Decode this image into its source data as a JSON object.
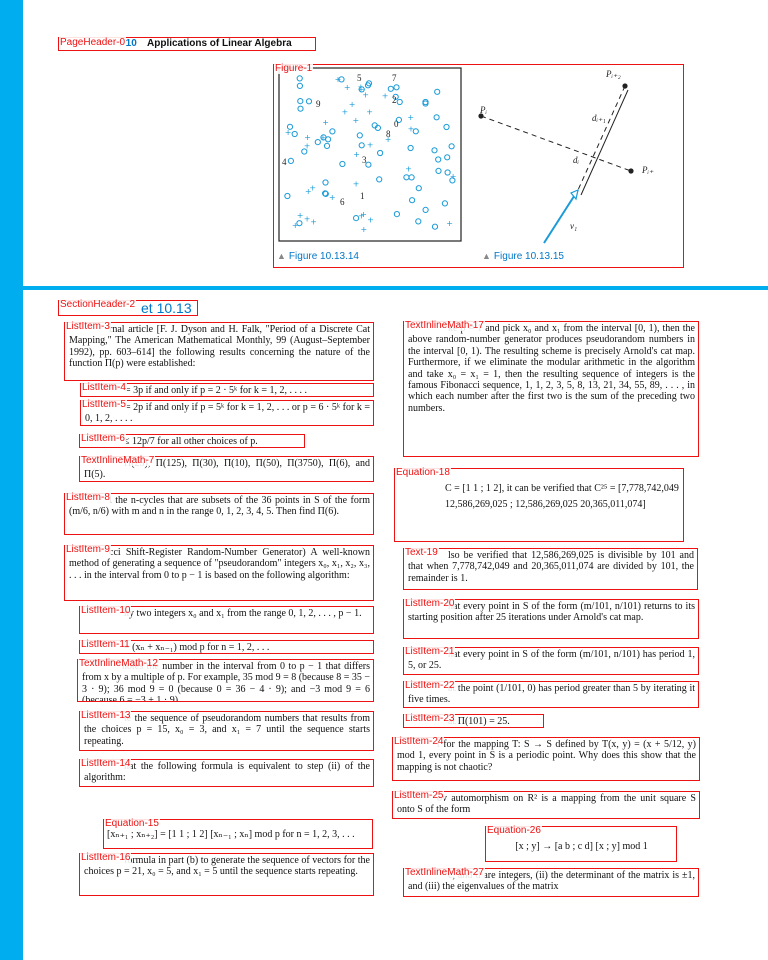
{
  "page_header": {
    "label": "PageHeader-0",
    "chapter": "r 10",
    "title": "Applications of Linear Algebra"
  },
  "figure": {
    "label": "Figure-1",
    "left_panel": {
      "caption": "Figure 10.13.14",
      "numbers": [
        "5",
        "7",
        "9",
        "2",
        "0",
        "8",
        "4",
        "3",
        "6",
        "1"
      ]
    },
    "right_panel": {
      "caption": "Figure 10.13.15",
      "points": [
        "Pᵢ₊₂",
        "Pᵢ",
        "dᵢ₊₁",
        "dᵢ",
        "Pᵢ₊",
        "v₁"
      ]
    }
  },
  "section_header": {
    "label": "SectionHeader-2",
    "title": "et 10.13"
  },
  "blocks": [
    {
      "label": "ListItem-3",
      "text": "rnal article [F. J. Dyson and H. Falk, \"Period of a Discrete Cat Mapping,\" The American Mathematical Monthly, 99 (August–September 1992), pp. 603–614] the following results concerning the nature of the function Π(p) were established:"
    },
    {
      "label": "ListItem-4",
      "text": "= 3p if and only if p = 2 · 5ᵏ for k = 1, 2, . . . ."
    },
    {
      "label": "ListItem-5",
      "text": "= 2p if and only if p = 5ᵏ for k = 1, 2, . . . or p = 6 · 5ᵏ for k = 0, 1, 2, . . . ."
    },
    {
      "label": "ListItem-6",
      "text": "≤ 12p/7 for all other choices of p."
    },
    {
      "label": "TextInlineMath-7",
      "text": "Π(25), Π(125), Π(30), Π(10), Π(50), Π(3750), Π(6), and Π(5)."
    },
    {
      "label": "ListItem-8",
      "text": "l the n-cycles that are subsets of the 36 points in S of the form (m/6, n/6) with m and n in the range 0, 1, 2, 3, 4, 5. Then find Π(6)."
    },
    {
      "label": "ListItem-9",
      "text": "cci Shift-Register Random-Number Generator) A well-known method of generating a sequence of \"pseudorandom\" integers x₀, x₁, x₂, x₃, . . . in the interval from 0 to p − 1 is based on the following algorithm:"
    },
    {
      "label": "ListItem-10",
      "text": "ny two integers x₀ and x₁ from the range 0, 1, 2, . . . , p − 1."
    },
    {
      "label": "ListItem-11",
      "text": "= (xₙ + xₙ₋₁) mod p for n = 1, 2, . . ."
    },
    {
      "label": "TextInlineMath-12",
      "text": "notes the number in the interval from 0 to p − 1 that differs from x by a multiple of p. For example, 35 mod 9 = 8 (because 8 = 35 − 3 · 9); 36 mod 9 = 0 (because 0 = 36 − 4 · 9); and −3 mod 9 = 6 (because 6 = −3 + 1 · 9)."
    },
    {
      "label": "ListItem-13",
      "text": "te the sequence of pseudorandom numbers that results from the choices p = 15, x₀ = 3, and x₁ = 7 until the sequence starts repeating."
    },
    {
      "label": "ListItem-14",
      "text": "hat the following formula is equivalent to step (ii) of the algorithm:"
    },
    {
      "label": "Equation-15",
      "text": "[xₙ₊₁ ; xₙ₊₂] = [1 1 ; 1 2] [xₙ₋₁ ; xₙ] mod p    for n = 1, 2, 3, . . ."
    },
    {
      "label": "ListItem-16",
      "text": "formula in part (b) to generate the sequence of vectors for the choices p = 21, x₀ = 5, and x₁ = 5 until the sequence starts repeating."
    },
    {
      "label": "TextInlineMath-17",
      "text": "ke p = 1 and pick x₀ and x₁ from the interval [0, 1), then the above random-number generator produces pseudorandom numbers in the interval [0, 1). The resulting scheme is precisely Arnold's cat map. Furthermore, if we eliminate the modular arithmetic in the algorithm and take x₀ = x₁ = 1, then the resulting sequence of integers is the famous Fibonacci sequence, 1, 1, 2, 3, 5, 8, 13, 21, 34, 55, 89, . . . , in which each number after the first two is the sum of the preceding two numbers."
    },
    {
      "label": "Equation-18",
      "text": "C = [1 1 ; 1 2], it can be verified that   C²⁵ = [7,778,742,049  12,586,269,025 ; 12,586,269,025  20,365,011,074]"
    },
    {
      "label": "Text-19",
      "text": "lso be verified that 12,586,269,025 is divisible by 101 and that when 7,778,742,049 and 20,365,011,074 are divided by 101, the remainder is 1."
    },
    {
      "label": "ListItem-20",
      "text": "hat every point in S of the form (m/101, n/101) returns to its starting position after 25 iterations under Arnold's cat map."
    },
    {
      "label": "ListItem-21",
      "text": "hat every point in S of the form (m/101, n/101) has period 1, 5, or 25."
    },
    {
      "label": "ListItem-22",
      "text": "at the point (1/101, 0) has period greater than 5 by iterating it five times."
    },
    {
      "label": "ListItem-23",
      "text": "at Π(101) = 25."
    },
    {
      "label": "ListItem-24",
      "text": "t for the mapping T: S → S defined by T(x, y) = (x + 5/12, y) mod 1, every point in S is a periodic point. Why does this show that the mapping is not chaotic?"
    },
    {
      "label": "ListItem-25",
      "text": "ov automorphism on R² is a mapping from the unit square S onto S of the form"
    },
    {
      "label": "Equation-26",
      "text": "[x ; y] → [a b ; c d] [x ; y] mod 1"
    },
    {
      "label": "TextInlineMath-27",
      "text": "c, and d are integers, (ii) the determinant of the matrix is ±1, and (iii) the eigenvalues of the matrix"
    }
  ]
}
